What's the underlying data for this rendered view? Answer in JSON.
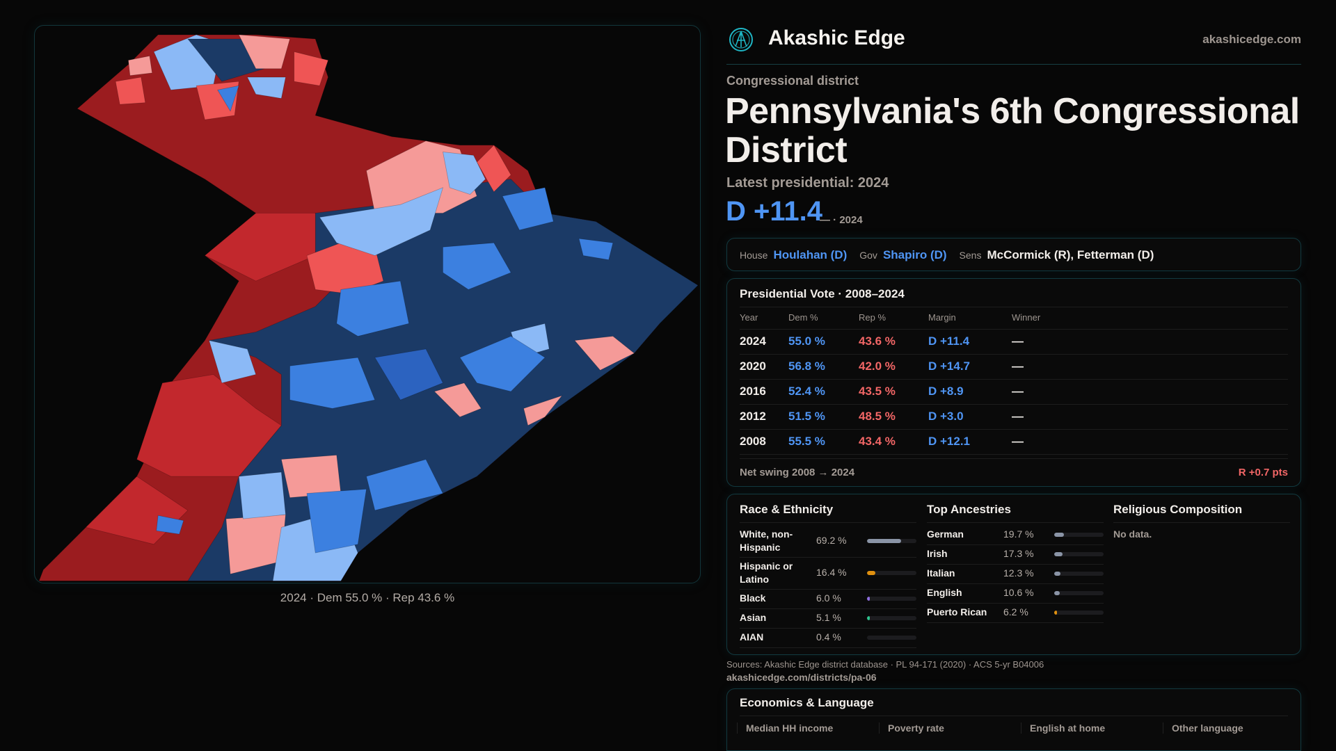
{
  "colors": {
    "dem": "#4f95f4",
    "rep": "#f26666",
    "accent": "#1fb5c4"
  },
  "map": {
    "caption": "2024 · Dem 55.0 % · Rep 43.6 %",
    "palette": {
      "safe_r": "#9b1c1f",
      "likely_r": "#c2282d",
      "lean_r": "#ef5555",
      "tilt_r": "#f59a98",
      "tilt_d": "#8bb9f6",
      "lean_d": "#3c80e0",
      "likely_d": "#2c63c0",
      "safe_d": "#1b3a66"
    }
  },
  "header": {
    "brand": "Akashic Edge",
    "site": "akashicedge.com",
    "logo_icon": "akashic-logo-icon"
  },
  "district": {
    "kind": "Congressional district",
    "title": "Pennsylvania's 6th Congressional District",
    "latest_label": "Latest presidential: 2024",
    "margin": "D +11.4",
    "margin_note": "— · 2024"
  },
  "officials": {
    "house_label": "House",
    "house": "Houlahan (D)",
    "gov_label": "Gov",
    "gov": "Shapiro (D)",
    "sens_label": "Sens",
    "sens": "McCormick (R), Fetterman (D)"
  },
  "presidential": {
    "title": "Presidential Vote · 2008–2024",
    "columns": [
      "Year",
      "Dem %",
      "Rep %",
      "Margin",
      "Winner"
    ],
    "rows": [
      {
        "year": "2024",
        "dem": "55.0 %",
        "rep": "43.6 %",
        "margin": "D +11.4",
        "winner": "—"
      },
      {
        "year": "2020",
        "dem": "56.8 %",
        "rep": "42.0 %",
        "margin": "D +14.7",
        "winner": "—"
      },
      {
        "year": "2016",
        "dem": "52.4 %",
        "rep": "43.5 %",
        "margin": "D +8.9",
        "winner": "—"
      },
      {
        "year": "2012",
        "dem": "51.5 %",
        "rep": "48.5 %",
        "margin": "D +3.0",
        "winner": "—"
      },
      {
        "year": "2008",
        "dem": "55.5 %",
        "rep": "43.4 %",
        "margin": "D +12.1",
        "winner": "—"
      }
    ],
    "swing_label": "Net swing 2008 → 2024",
    "swing_value": "R +0.7 pts"
  },
  "race": {
    "title": "Race & Ethnicity",
    "items": [
      {
        "label": "White, non-Hispanic",
        "value": "69.2 %",
        "pct": 69.2,
        "color": "#8a94a6"
      },
      {
        "label": "Hispanic or Latino",
        "value": "16.4 %",
        "pct": 16.4,
        "color": "#e0900f"
      },
      {
        "label": "Black",
        "value": "6.0 %",
        "pct": 6.0,
        "color": "#8e6ee0"
      },
      {
        "label": "Asian",
        "value": "5.1 %",
        "pct": 5.1,
        "color": "#2ec48e"
      },
      {
        "label": "AIAN",
        "value": "0.4 %",
        "pct": 0.4,
        "color": "#8a94a6"
      }
    ]
  },
  "ancestry": {
    "title": "Top Ancestries",
    "items": [
      {
        "label": "German",
        "value": "19.7 %",
        "pct": 19.7,
        "color": "#8a94a6"
      },
      {
        "label": "Irish",
        "value": "17.3 %",
        "pct": 17.3,
        "color": "#8a94a6"
      },
      {
        "label": "Italian",
        "value": "12.3 %",
        "pct": 12.3,
        "color": "#8a94a6"
      },
      {
        "label": "English",
        "value": "10.6 %",
        "pct": 10.6,
        "color": "#8a94a6"
      },
      {
        "label": "Puerto Rican",
        "value": "6.2 %",
        "pct": 6.2,
        "color": "#e0900f"
      }
    ]
  },
  "religion": {
    "title": "Religious Composition",
    "empty": "No data."
  },
  "economics": {
    "title": "Economics & Language",
    "stats": [
      "Median HH income",
      "Poverty rate",
      "English at home",
      "Other language"
    ]
  },
  "footer": {
    "sources": "Sources: Akashic Edge district database · PL 94-171 (2020) · ACS 5-yr B04006",
    "url": "akashicedge.com/districts/pa-06"
  }
}
